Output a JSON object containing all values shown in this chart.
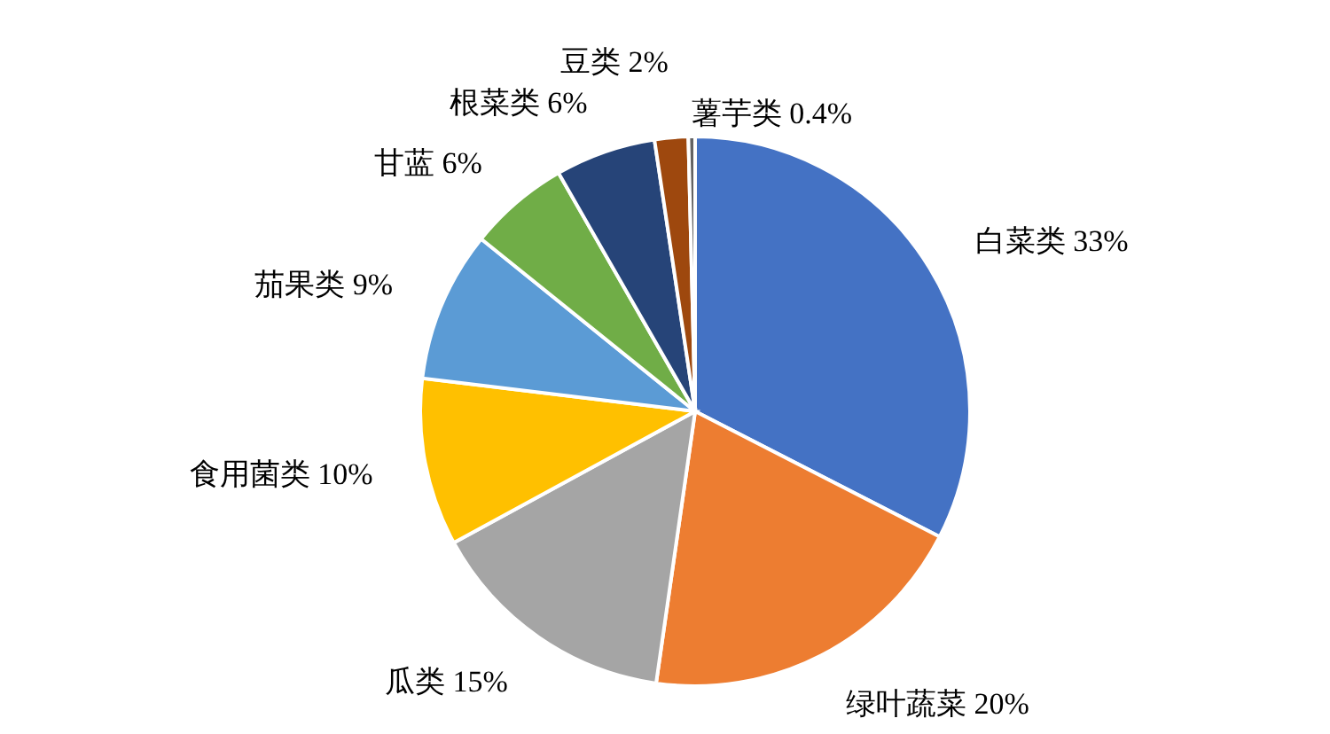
{
  "chart_data": {
    "type": "pie",
    "categories": [
      "白菜类",
      "绿叶蔬菜",
      "瓜类",
      "食用菌类",
      "茄果类",
      "甘蓝",
      "根菜类",
      "豆类",
      "薯芋类"
    ],
    "values": [
      33,
      20,
      15,
      10,
      9,
      6,
      6,
      2,
      0.4
    ],
    "colors": [
      "#4472c4",
      "#ed7d31",
      "#a5a5a5",
      "#ffc000",
      "#5b9bd5",
      "#70ad47",
      "#264478",
      "#9e480e",
      "#636363"
    ],
    "value_labels": [
      "33%",
      "20%",
      "15%",
      "10%",
      "9%",
      "6%",
      "6%",
      "2%",
      "0.4%"
    ]
  }
}
